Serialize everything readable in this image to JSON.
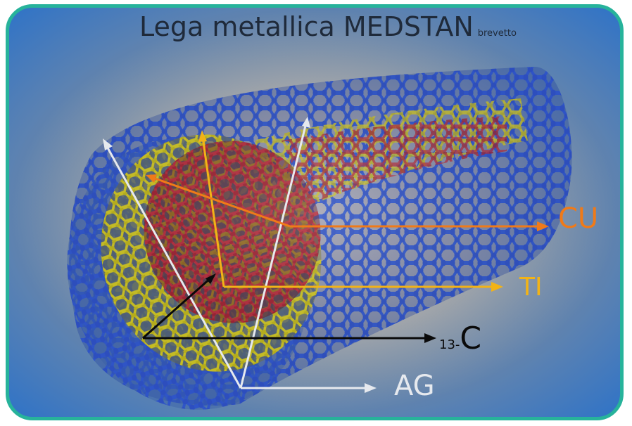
{
  "title": "Lega metallica MEDSTAN",
  "title_suffix": "brevetto",
  "labels": {
    "cu": "CU",
    "ti": "TI",
    "c13_prefix": "13-",
    "c13_main": "C",
    "ag": "AG"
  },
  "colors": {
    "frame_border": "#27b39b",
    "outer_lattice": "#2f55c8",
    "middle_lattice": "#c9c023",
    "inner_lattice": "#b02a3a",
    "cu_arrow": "#f07a18",
    "ti_arrow": "#f2b317",
    "c_arrow": "#0a0a0a",
    "ag_arrow": "#e6e9ee"
  }
}
